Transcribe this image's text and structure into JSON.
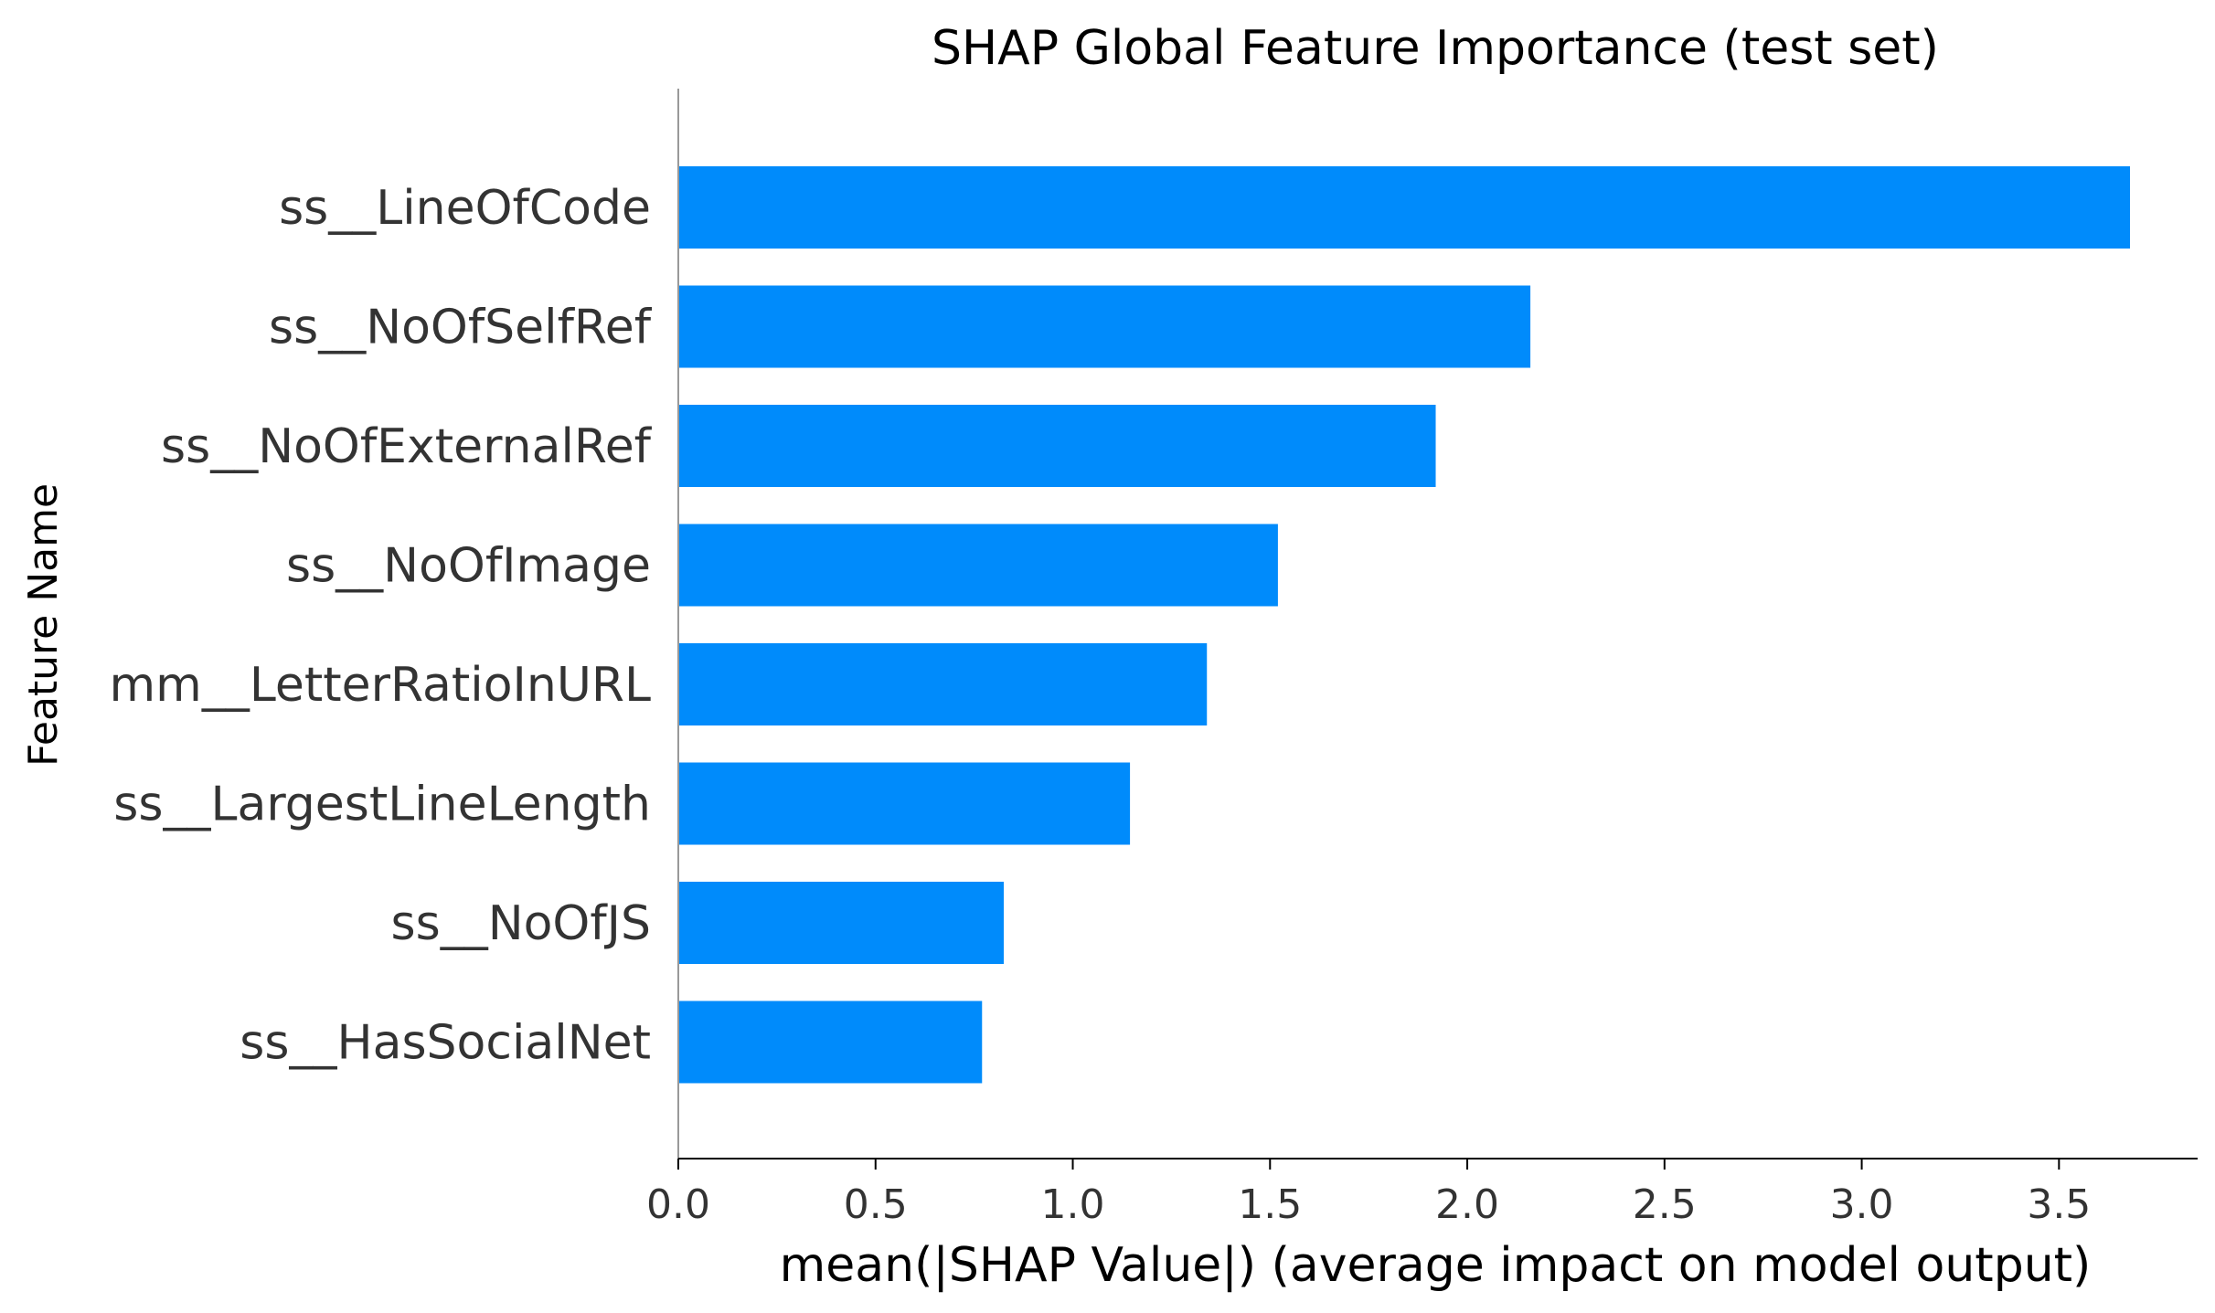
{
  "chart_data": {
    "type": "bar",
    "orientation": "horizontal",
    "title": "SHAP Global Feature Importance (test set)",
    "xlabel": "mean(|SHAP Value|) (average impact on model output)",
    "ylabel": "Feature Name",
    "categories": [
      "ss__LineOfCode",
      "ss__NoOfSelfRef",
      "ss__NoOfExternalRef",
      "ss__NoOfImage",
      "mm__LetterRatioInURL",
      "ss__LargestLineLength",
      "ss__NoOfJS",
      "ss__HasSocialNet"
    ],
    "values": [
      3.68,
      2.16,
      1.92,
      1.52,
      1.34,
      1.145,
      0.825,
      0.77
    ],
    "xlim": [
      0,
      3.86
    ],
    "xticks": [
      "0.0",
      "0.5",
      "1.0",
      "1.5",
      "2.0",
      "2.5",
      "3.0",
      "3.5"
    ],
    "bar_color": "#008bfb",
    "grid": false
  }
}
